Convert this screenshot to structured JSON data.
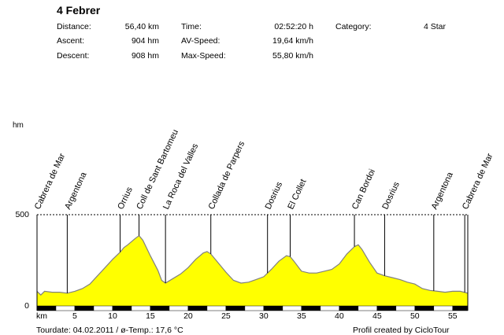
{
  "header": {
    "title": "4 Febrer",
    "stats": [
      {
        "label": "Distance:",
        "value": "56,40 km"
      },
      {
        "label": "Ascent:",
        "value": "904 hm"
      },
      {
        "label": "Descent:",
        "value": "908 hm"
      },
      {
        "label": "Time:",
        "value": "02:52:20 h"
      },
      {
        "label": "AV-Speed:",
        "value": "19,64 km/h"
      },
      {
        "label": "Max-Speed:",
        "value": "55,80 km/h"
      },
      {
        "label": "Category:",
        "value": "4 Star"
      }
    ]
  },
  "footer": {
    "tourdate": "Tourdate: 04.02.2011  /  ø-Temp.: 17,6 °C",
    "credit": "Profil created by CicloTour"
  },
  "chart_data": {
    "type": "area",
    "title": "4 Febrer",
    "xlabel": "km",
    "ylabel": "hm",
    "xlim": [
      0,
      57
    ],
    "ylim": [
      0,
      500
    ],
    "yticks": [
      0,
      500
    ],
    "xticks": [
      5,
      10,
      15,
      20,
      25,
      30,
      35,
      40,
      45,
      50,
      55
    ],
    "fill_color": "#ffff00",
    "line_color": "#808080",
    "x": [
      0,
      0.5,
      1,
      2,
      3,
      4,
      5,
      6,
      7,
      8,
      9,
      10,
      11,
      11.5,
      12,
      13,
      13.5,
      14,
      15,
      16,
      16.5,
      17,
      18,
      19,
      20,
      21,
      22,
      22.5,
      23,
      24,
      25,
      26,
      27,
      28,
      29,
      30,
      31,
      32,
      33,
      33.5,
      34,
      35,
      36,
      37,
      38,
      39,
      40,
      41,
      42,
      42.5,
      43,
      44,
      45,
      46,
      47,
      48,
      49,
      50,
      51,
      52,
      53,
      54,
      55,
      56,
      57
    ],
    "values": [
      80,
      60,
      80,
      75,
      75,
      70,
      80,
      95,
      120,
      165,
      210,
      255,
      295,
      320,
      335,
      370,
      385,
      360,
      275,
      195,
      140,
      125,
      150,
      175,
      210,
      255,
      290,
      298,
      285,
      235,
      185,
      140,
      125,
      130,
      145,
      160,
      200,
      245,
      275,
      270,
      245,
      190,
      180,
      180,
      190,
      200,
      230,
      285,
      325,
      335,
      310,
      240,
      180,
      165,
      155,
      145,
      130,
      120,
      95,
      85,
      80,
      75,
      80,
      80,
      70
    ],
    "waypoints": [
      {
        "name": "Cabrera de Mar",
        "km": 0
      },
      {
        "name": "Argentona",
        "km": 4
      },
      {
        "name": "Orrius",
        "km": 11
      },
      {
        "name": "Coll de Sant Bartomeu",
        "km": 13.5
      },
      {
        "name": "La Roca del Valles",
        "km": 17
      },
      {
        "name": "Collada de Parpers",
        "km": 23
      },
      {
        "name": "Dosrius",
        "km": 30.5
      },
      {
        "name": "El Collet",
        "km": 33.5
      },
      {
        "name": "Can Bordoi",
        "km": 42
      },
      {
        "name": "Dosrius",
        "km": 46
      },
      {
        "name": "Argentona",
        "km": 52.5
      },
      {
        "name": "Cabrera de Mar",
        "km": 56.6
      }
    ]
  }
}
